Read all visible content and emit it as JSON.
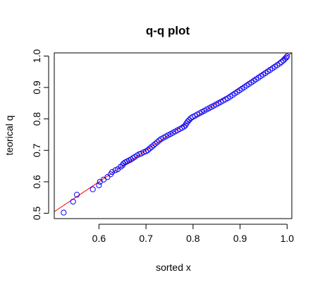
{
  "chart_data": {
    "type": "scatter",
    "title": "q-q plot",
    "xlabel": "sorted x",
    "ylabel": "teorical q",
    "xlim": [
      0.505,
      1.01
    ],
    "ylim": [
      0.483,
      1.01
    ],
    "x_ticks": [
      0.6,
      0.7,
      0.8,
      0.9,
      1.0
    ],
    "x_tick_labels": [
      "0.6",
      "0.7",
      "0.8",
      "0.9",
      "1.0"
    ],
    "y_ticks": [
      0.5,
      0.6,
      0.7,
      0.8,
      0.9,
      1.0
    ],
    "y_tick_labels": [
      "0.5",
      "0.6",
      "0.7",
      "0.8",
      "0.9",
      "1.0"
    ],
    "grid": false,
    "point_color": "#0000ff",
    "line_color": "#ff0000",
    "reference_line": {
      "intercept": 0.0,
      "slope": 1.0
    },
    "points": [
      [
        0.525,
        0.502
      ],
      [
        0.545,
        0.537
      ],
      [
        0.553,
        0.559
      ],
      [
        0.587,
        0.576
      ],
      [
        0.6,
        0.589
      ],
      [
        0.602,
        0.6
      ],
      [
        0.61,
        0.607
      ],
      [
        0.618,
        0.615
      ],
      [
        0.625,
        0.624
      ],
      [
        0.628,
        0.631
      ],
      [
        0.635,
        0.637
      ],
      [
        0.64,
        0.64
      ],
      [
        0.646,
        0.648
      ],
      [
        0.65,
        0.652
      ],
      [
        0.652,
        0.658
      ],
      [
        0.656,
        0.662
      ],
      [
        0.66,
        0.665
      ],
      [
        0.664,
        0.668
      ],
      [
        0.668,
        0.671
      ],
      [
        0.672,
        0.675
      ],
      [
        0.676,
        0.679
      ],
      [
        0.681,
        0.684
      ],
      [
        0.686,
        0.688
      ],
      [
        0.69,
        0.69
      ],
      [
        0.695,
        0.694
      ],
      [
        0.7,
        0.697
      ],
      [
        0.704,
        0.701
      ],
      [
        0.708,
        0.706
      ],
      [
        0.712,
        0.711
      ],
      [
        0.716,
        0.716
      ],
      [
        0.72,
        0.721
      ],
      [
        0.724,
        0.726
      ],
      [
        0.728,
        0.731
      ],
      [
        0.732,
        0.736
      ],
      [
        0.737,
        0.74
      ],
      [
        0.742,
        0.744
      ],
      [
        0.747,
        0.748
      ],
      [
        0.752,
        0.752
      ],
      [
        0.757,
        0.756
      ],
      [
        0.762,
        0.76
      ],
      [
        0.767,
        0.764
      ],
      [
        0.772,
        0.768
      ],
      [
        0.777,
        0.772
      ],
      [
        0.781,
        0.776
      ],
      [
        0.784,
        0.78
      ],
      [
        0.786,
        0.786
      ],
      [
        0.789,
        0.792
      ],
      [
        0.792,
        0.797
      ],
      [
        0.795,
        0.802
      ],
      [
        0.799,
        0.806
      ],
      [
        0.804,
        0.81
      ],
      [
        0.809,
        0.814
      ],
      [
        0.814,
        0.818
      ],
      [
        0.819,
        0.822
      ],
      [
        0.824,
        0.826
      ],
      [
        0.829,
        0.83
      ],
      [
        0.834,
        0.834
      ],
      [
        0.839,
        0.838
      ],
      [
        0.844,
        0.842
      ],
      [
        0.849,
        0.846
      ],
      [
        0.854,
        0.85
      ],
      [
        0.859,
        0.854
      ],
      [
        0.864,
        0.858
      ],
      [
        0.869,
        0.862
      ],
      [
        0.874,
        0.866
      ],
      [
        0.879,
        0.871
      ],
      [
        0.884,
        0.876
      ],
      [
        0.889,
        0.881
      ],
      [
        0.894,
        0.886
      ],
      [
        0.899,
        0.891
      ],
      [
        0.904,
        0.896
      ],
      [
        0.909,
        0.901
      ],
      [
        0.914,
        0.906
      ],
      [
        0.919,
        0.911
      ],
      [
        0.924,
        0.916
      ],
      [
        0.929,
        0.921
      ],
      [
        0.934,
        0.926
      ],
      [
        0.939,
        0.931
      ],
      [
        0.944,
        0.936
      ],
      [
        0.949,
        0.941
      ],
      [
        0.954,
        0.946
      ],
      [
        0.959,
        0.951
      ],
      [
        0.964,
        0.956
      ],
      [
        0.969,
        0.961
      ],
      [
        0.974,
        0.966
      ],
      [
        0.979,
        0.971
      ],
      [
        0.984,
        0.976
      ],
      [
        0.988,
        0.981
      ],
      [
        0.992,
        0.986
      ],
      [
        0.995,
        0.991
      ],
      [
        0.998,
        0.995
      ],
      [
        1.0,
        0.999
      ]
    ]
  }
}
